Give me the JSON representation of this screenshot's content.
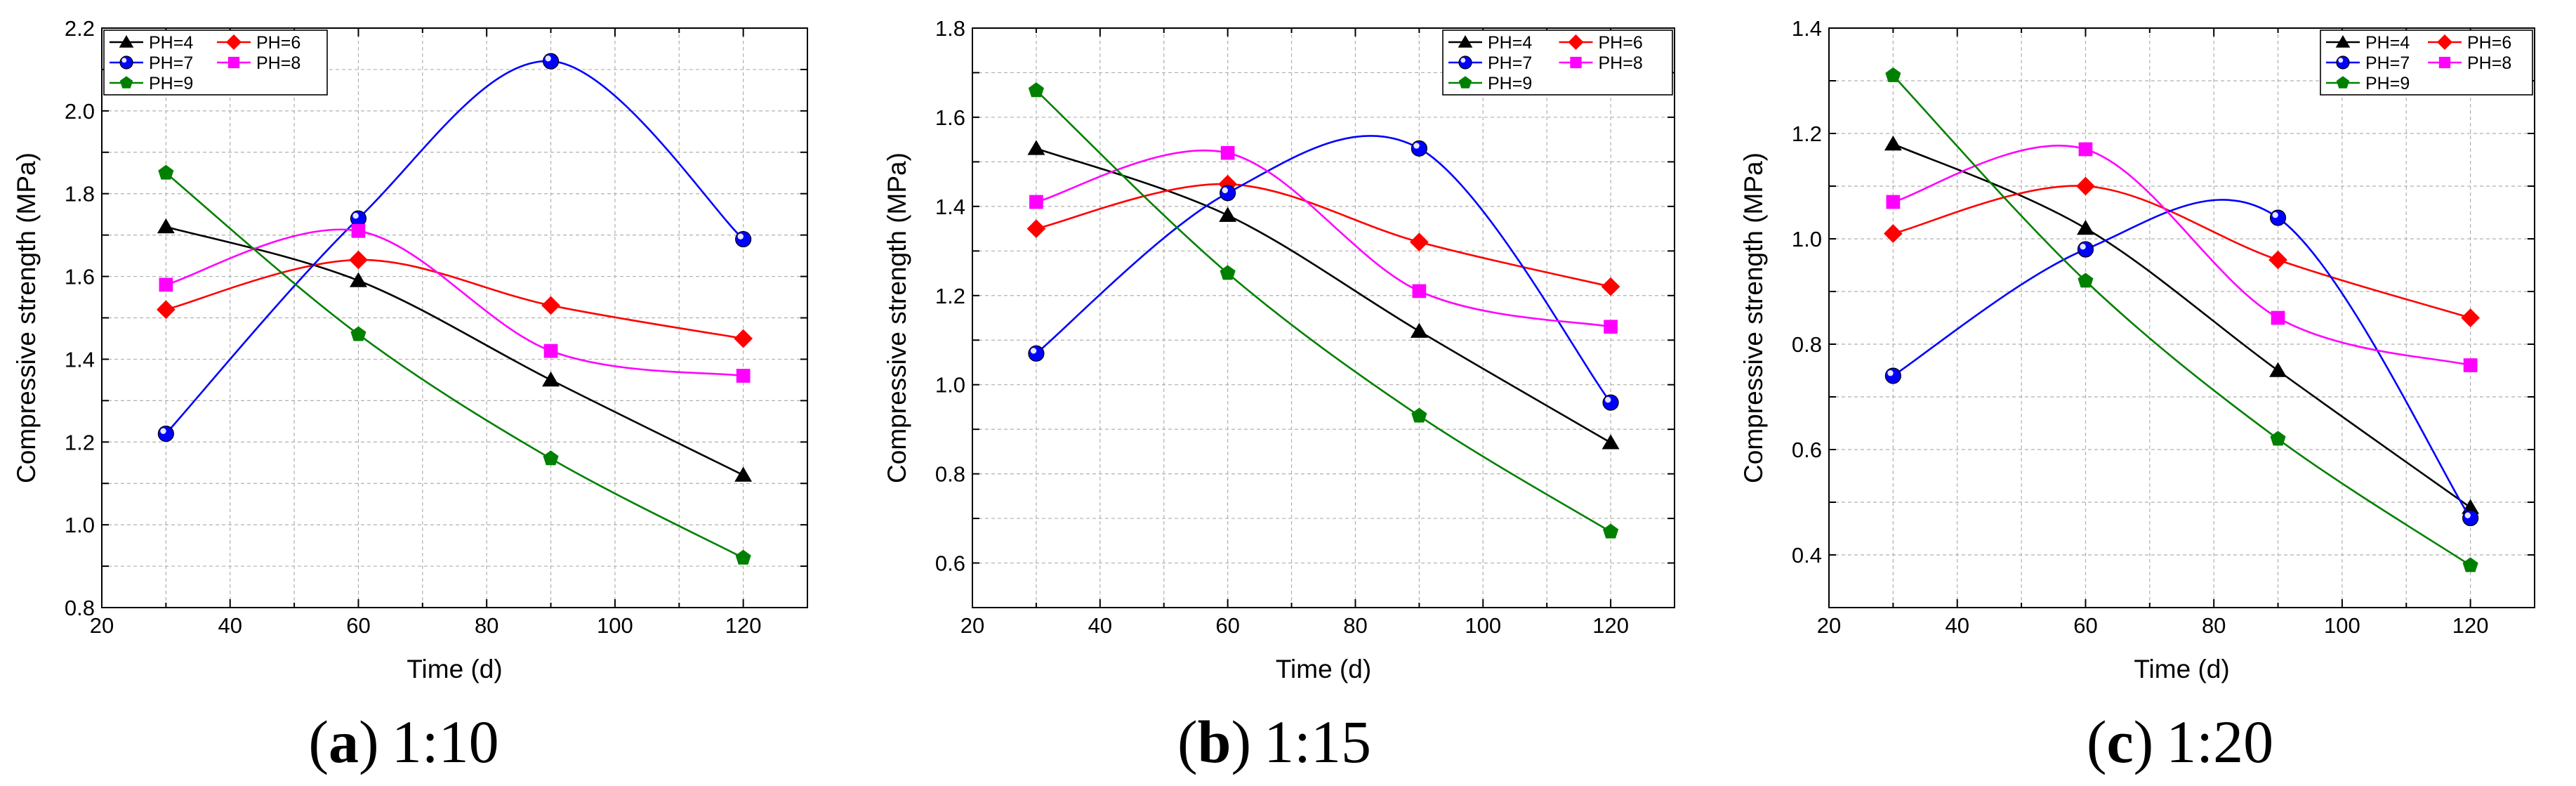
{
  "figure": {
    "panels": [
      {
        "letter": "a",
        "paren_open": "(",
        "paren_close": ")",
        "caption": "1:10"
      },
      {
        "letter": "b",
        "paren_open": "(",
        "paren_close": ")",
        "caption": "1:15"
      },
      {
        "letter": "c",
        "paren_open": "(",
        "paren_close": ")",
        "caption": "1:20"
      }
    ],
    "colors": {
      "PH=4": "#000000",
      "PH=6": "#ff0000",
      "PH=7": "#0000ff",
      "PH=8": "#ff00ff",
      "PH=9": "#008000"
    },
    "markers": {
      "PH=4": "triangle",
      "PH=6": "diamond",
      "PH=7": "circle",
      "PH=8": "square",
      "PH=9": "pentagon"
    }
  },
  "chart_data": [
    {
      "type": "line",
      "title": "(a) 1:10",
      "xlabel": "Time (d)",
      "ylabel": "Compressive strength (MPa)",
      "x": [
        30,
        60,
        90,
        120
      ],
      "xlim": [
        20,
        130
      ],
      "xticks": [
        20,
        40,
        60,
        80,
        100,
        120
      ],
      "ylim": [
        0.8,
        2.2
      ],
      "yticks": [
        "0.8",
        "1.0",
        "1.2",
        "1.4",
        "1.6",
        "1.8",
        "2.0",
        "2.2"
      ],
      "grid": true,
      "legend_position": "top-left",
      "series": [
        {
          "name": "PH=4",
          "values": [
            1.72,
            1.59,
            1.35,
            1.12
          ]
        },
        {
          "name": "PH=6",
          "values": [
            1.52,
            1.64,
            1.53,
            1.45
          ]
        },
        {
          "name": "PH=7",
          "values": [
            1.22,
            1.74,
            2.12,
            1.69
          ]
        },
        {
          "name": "PH=8",
          "values": [
            1.58,
            1.71,
            1.42,
            1.36
          ]
        },
        {
          "name": "PH=9",
          "values": [
            1.85,
            1.46,
            1.16,
            0.92
          ]
        }
      ]
    },
    {
      "type": "line",
      "title": "(b) 1:15",
      "xlabel": "Time (d)",
      "ylabel": "Compressive strength (MPa)",
      "x": [
        30,
        60,
        90,
        120
      ],
      "xlim": [
        20,
        130
      ],
      "xticks": [
        20,
        40,
        60,
        80,
        100,
        120
      ],
      "ylim": [
        0.5,
        1.8
      ],
      "yticks": [
        "0.6",
        "0.8",
        "1.0",
        "1.2",
        "1.4",
        "1.6",
        "1.8"
      ],
      "grid": true,
      "legend_position": "top-right",
      "series": [
        {
          "name": "PH=4",
          "values": [
            1.53,
            1.38,
            1.12,
            0.87
          ]
        },
        {
          "name": "PH=6",
          "values": [
            1.35,
            1.45,
            1.32,
            1.22
          ]
        },
        {
          "name": "PH=7",
          "values": [
            1.07,
            1.43,
            1.53,
            0.96
          ]
        },
        {
          "name": "PH=8",
          "values": [
            1.41,
            1.52,
            1.21,
            1.13
          ]
        },
        {
          "name": "PH=9",
          "values": [
            1.66,
            1.25,
            0.93,
            0.67
          ]
        }
      ]
    },
    {
      "type": "line",
      "title": "(c) 1:20",
      "xlabel": "Time (d)",
      "ylabel": "Compressive strength (MPa)",
      "x": [
        30,
        60,
        90,
        120
      ],
      "xlim": [
        20,
        130
      ],
      "xticks": [
        20,
        40,
        60,
        80,
        100,
        120
      ],
      "ylim": [
        0.3,
        1.4
      ],
      "yticks": [
        "0.4",
        "0.6",
        "0.8",
        "1.0",
        "1.2",
        "1.4"
      ],
      "grid": true,
      "legend_position": "top-right",
      "series": [
        {
          "name": "PH=4",
          "values": [
            1.18,
            1.02,
            0.75,
            0.49
          ]
        },
        {
          "name": "PH=6",
          "values": [
            1.01,
            1.1,
            0.96,
            0.85
          ]
        },
        {
          "name": "PH=7",
          "values": [
            0.74,
            0.98,
            1.04,
            0.47
          ]
        },
        {
          "name": "PH=8",
          "values": [
            1.07,
            1.17,
            0.85,
            0.76
          ]
        },
        {
          "name": "PH=9",
          "values": [
            1.31,
            0.92,
            0.62,
            0.38
          ]
        }
      ]
    }
  ]
}
